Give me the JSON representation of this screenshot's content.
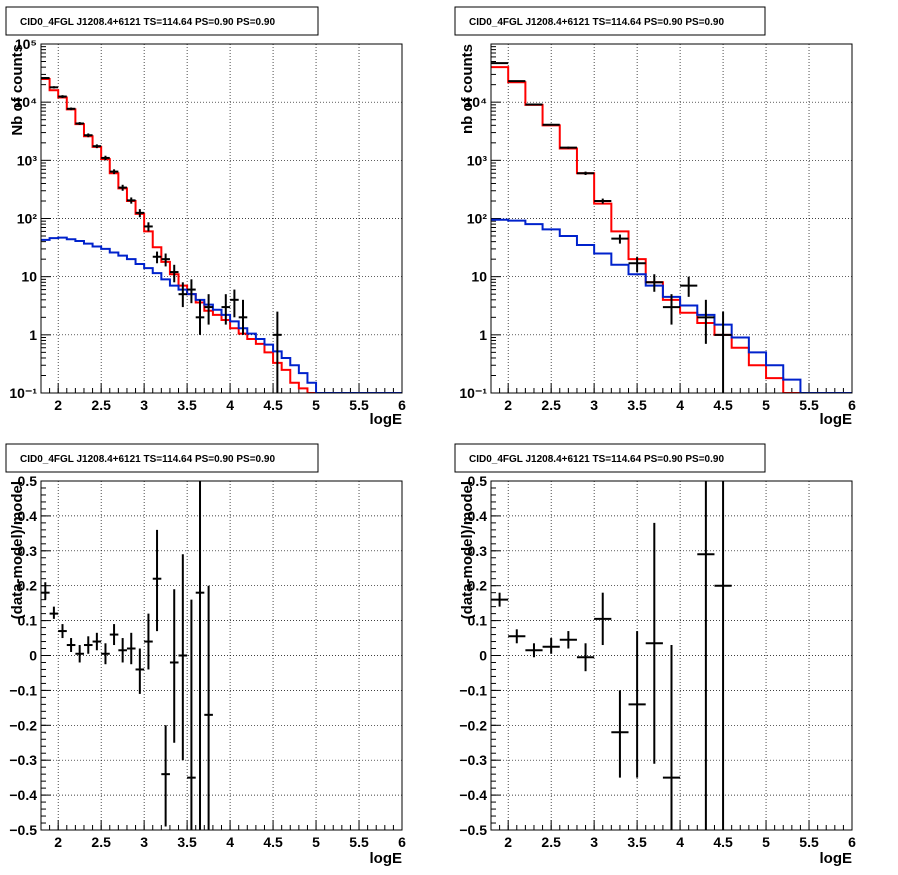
{
  "colors": {
    "total_model": "#ff0000",
    "background_model": "#0022cc",
    "data": "#000000",
    "zero_model": "#0000ff"
  },
  "chart_data": [
    {
      "type": "step-histogram",
      "title": "CID0_4FGL J1208.4+6121 TS=114.64 PS=0.90 PS=0.90",
      "xlabel": "logE",
      "ylabel": "Nb of counts",
      "log_y": true,
      "xlim": [
        1.8,
        6.0
      ],
      "ylim": [
        0.1,
        100000
      ],
      "x_ticks": [
        2,
        2.5,
        3,
        3.5,
        4,
        4.5,
        5,
        5.5,
        6
      ],
      "x_tick_labels": [
        "2",
        "2.5",
        "3",
        "3.5",
        "4",
        "4.5",
        "5",
        "5.5",
        "6"
      ],
      "y_ticks": [
        0.1,
        1,
        10,
        100,
        1000,
        10000,
        100000
      ],
      "y_tick_labels": [
        "10⁻¹",
        "1",
        "10",
        "10²",
        "10³",
        "10⁴",
        "10⁵"
      ],
      "grid": true,
      "bin_edges": [
        1.8,
        1.9,
        2.0,
        2.1,
        2.2,
        2.3,
        2.4,
        2.5,
        2.6,
        2.7,
        2.8,
        2.9,
        3.0,
        3.1,
        3.2,
        3.3,
        3.4,
        3.5,
        3.6,
        3.7,
        3.8,
        3.9,
        4.0,
        4.1,
        4.2,
        4.3,
        4.4,
        4.5,
        4.6,
        4.7,
        4.8,
        4.9,
        5.0,
        5.1,
        5.2,
        5.3,
        5.4,
        5.5,
        5.6,
        5.7,
        5.8,
        5.9,
        6.0
      ],
      "series": [
        {
          "role": "total_model",
          "values": [
            25000,
            16000,
            12000,
            7500,
            4200,
            2600,
            1700,
            1050,
            600,
            330,
            200,
            120,
            60,
            32,
            18,
            11,
            7,
            5,
            3.6,
            2.6,
            2.2,
            1.8,
            1.3,
            1.05,
            0.85,
            0.7,
            0.5,
            0.33,
            0.25,
            0.15,
            0.12,
            0.1,
            0.1,
            0.1,
            0.1,
            0.1,
            0.1,
            0.1,
            0.1,
            0.1,
            0.1,
            0.1
          ]
        },
        {
          "role": "background_model",
          "values": [
            43,
            46,
            47,
            44,
            41,
            37,
            33,
            30,
            26,
            23,
            20,
            16.5,
            14,
            11.5,
            9,
            7,
            6,
            5,
            4,
            3.3,
            2.7,
            2.2,
            1.7,
            1.3,
            1.05,
            0.85,
            0.68,
            0.52,
            0.4,
            0.3,
            0.22,
            0.15,
            0.1,
            0.1,
            0.1,
            0.1,
            0.1,
            0.1,
            0.1,
            0.1,
            0.1,
            0.1
          ]
        },
        {
          "role": "data",
          "points": [
            {
              "x": 1.85,
              "y": 26000,
              "lo": 25000,
              "hi": 27000
            },
            {
              "x": 1.95,
              "y": 18000,
              "lo": 17200,
              "hi": 18800
            },
            {
              "x": 2.05,
              "y": 12500,
              "lo": 11800,
              "hi": 13200
            },
            {
              "x": 2.15,
              "y": 7700,
              "lo": 7300,
              "hi": 8100
            },
            {
              "x": 2.25,
              "y": 4300,
              "lo": 4050,
              "hi": 4550
            },
            {
              "x": 2.35,
              "y": 2700,
              "lo": 2500,
              "hi": 2900
            },
            {
              "x": 2.45,
              "y": 1750,
              "lo": 1620,
              "hi": 1880
            },
            {
              "x": 2.55,
              "y": 1100,
              "lo": 1000,
              "hi": 1200
            },
            {
              "x": 2.65,
              "y": 640,
              "lo": 580,
              "hi": 700
            },
            {
              "x": 2.75,
              "y": 340,
              "lo": 300,
              "hi": 380
            },
            {
              "x": 2.85,
              "y": 205,
              "lo": 180,
              "hi": 230
            },
            {
              "x": 2.95,
              "y": 125,
              "lo": 105,
              "hi": 145
            },
            {
              "x": 3.05,
              "y": 73,
              "lo": 60,
              "hi": 86
            },
            {
              "x": 3.15,
              "y": 22,
              "lo": 17,
              "hi": 27
            },
            {
              "x": 3.25,
              "y": 20,
              "lo": 15,
              "hi": 25
            },
            {
              "x": 3.35,
              "y": 12,
              "lo": 8,
              "hi": 16
            },
            {
              "x": 3.45,
              "y": 5,
              "lo": 3,
              "hi": 8
            },
            {
              "x": 3.55,
              "y": 6,
              "lo": 3.5,
              "hi": 9
            },
            {
              "x": 3.65,
              "y": 2,
              "lo": 1,
              "hi": 4
            },
            {
              "x": 3.75,
              "y": 3,
              "lo": 1.5,
              "hi": 5
            },
            {
              "x": 3.95,
              "y": 3,
              "lo": 1.5,
              "hi": 5
            },
            {
              "x": 4.05,
              "y": 4,
              "lo": 2,
              "hi": 6
            },
            {
              "x": 4.15,
              "y": 2,
              "lo": 1,
              "hi": 4
            },
            {
              "x": 4.55,
              "y": 1,
              "lo": 0.1,
              "hi": 2.5
            }
          ]
        }
      ]
    },
    {
      "type": "step-histogram",
      "title": "CID0_4FGL J1208.4+6121 TS=114.64 PS=0.90 PS=0.90",
      "xlabel": "logE",
      "ylabel": "nb of counts",
      "log_y": true,
      "xlim": [
        1.8,
        6.0
      ],
      "ylim": [
        0.1,
        100000
      ],
      "x_ticks": [
        2,
        2.5,
        3,
        3.5,
        4,
        4.5,
        5,
        5.5,
        6
      ],
      "x_tick_labels": [
        "2",
        "2.5",
        "3",
        "3.5",
        "4",
        "4.5",
        "5",
        "5.5",
        "6"
      ],
      "y_ticks": [
        0.1,
        1,
        10,
        100,
        1000,
        10000
      ],
      "y_tick_labels": [
        "10⁻¹",
        "1",
        "10",
        "10²",
        "10³",
        "10⁴"
      ],
      "grid": true,
      "bin_edges": [
        1.8,
        2.0,
        2.2,
        2.4,
        2.6,
        2.8,
        3.0,
        3.2,
        3.4,
        3.6,
        3.8,
        4.0,
        4.2,
        4.4,
        4.6,
        4.8,
        5.0,
        5.2,
        5.4,
        5.6,
        5.8,
        6.0
      ],
      "series": [
        {
          "role": "total_model",
          "values": [
            40000,
            22000,
            9000,
            4000,
            1600,
            600,
            180,
            60,
            20,
            8,
            4,
            2.4,
            1.6,
            1,
            0.6,
            0.3,
            0.18,
            0.1,
            0.1,
            0.1,
            0.1
          ]
        },
        {
          "role": "background_model",
          "values": [
            95,
            92,
            80,
            65,
            50,
            35,
            25,
            16,
            11,
            7,
            4.5,
            3.2,
            2.2,
            1.5,
            0.9,
            0.5,
            0.3,
            0.17,
            0.1,
            0.1,
            0.1
          ]
        },
        {
          "role": "data",
          "points": [
            {
              "x": 1.9,
              "y": 47000,
              "lo": 46000,
              "hi": 48000
            },
            {
              "x": 2.1,
              "y": 23000,
              "lo": 22500,
              "hi": 23500
            },
            {
              "x": 2.3,
              "y": 9100,
              "lo": 8900,
              "hi": 9300
            },
            {
              "x": 2.5,
              "y": 4100,
              "lo": 3950,
              "hi": 4250
            },
            {
              "x": 2.7,
              "y": 1650,
              "lo": 1580,
              "hi": 1720
            },
            {
              "x": 2.9,
              "y": 600,
              "lo": 560,
              "hi": 640
            },
            {
              "x": 3.1,
              "y": 200,
              "lo": 180,
              "hi": 220
            },
            {
              "x": 3.3,
              "y": 45,
              "lo": 37,
              "hi": 53
            },
            {
              "x": 3.5,
              "y": 17,
              "lo": 12,
              "hi": 22
            },
            {
              "x": 3.7,
              "y": 8,
              "lo": 5.5,
              "hi": 11
            },
            {
              "x": 3.9,
              "y": 3,
              "lo": 1.5,
              "hi": 5
            },
            {
              "x": 4.1,
              "y": 7,
              "lo": 4.5,
              "hi": 10
            },
            {
              "x": 4.3,
              "y": 2,
              "lo": 0.7,
              "hi": 4
            },
            {
              "x": 4.5,
              "y": 1,
              "lo": 0.1,
              "hi": 2.5
            }
          ]
        }
      ]
    },
    {
      "type": "scatter",
      "title": "CID0_4FGL J1208.4+6121 TS=114.64 PS=0.90 PS=0.90",
      "xlabel": "logE",
      "ylabel": "(data-model)/model",
      "log_y": false,
      "xlim": [
        1.8,
        6.0
      ],
      "ylim": [
        -0.5,
        0.5
      ],
      "x_ticks": [
        2,
        2.5,
        3,
        3.5,
        4,
        4.5,
        5,
        5.5,
        6
      ],
      "x_tick_labels": [
        "2",
        "2.5",
        "3",
        "3.5",
        "4",
        "4.5",
        "5",
        "5.5",
        "6"
      ],
      "y_ticks": [
        -0.5,
        -0.4,
        -0.3,
        -0.2,
        -0.1,
        0,
        0.1,
        0.2,
        0.3,
        0.4,
        0.5
      ],
      "y_tick_labels": [
        "−0.5",
        "−0.4",
        "−0.3",
        "−0.2",
        "−0.1",
        "0",
        "0.1",
        "0.2",
        "0.3",
        "0.4",
        "0.5"
      ],
      "grid": true,
      "xerr": 0.05,
      "series": [
        {
          "role": "data",
          "points": [
            {
              "x": 1.85,
              "y": 0.18,
              "lo": 0.16,
              "hi": 0.21
            },
            {
              "x": 1.95,
              "y": 0.12,
              "lo": 0.105,
              "hi": 0.14
            },
            {
              "x": 2.05,
              "y": 0.07,
              "lo": 0.05,
              "hi": 0.09
            },
            {
              "x": 2.15,
              "y": 0.03,
              "lo": 0.01,
              "hi": 0.05
            },
            {
              "x": 2.25,
              "y": 0.005,
              "lo": -0.02,
              "hi": 0.03
            },
            {
              "x": 2.35,
              "y": 0.03,
              "lo": 0.005,
              "hi": 0.055
            },
            {
              "x": 2.45,
              "y": 0.04,
              "lo": 0.015,
              "hi": 0.065
            },
            {
              "x": 2.55,
              "y": 0.005,
              "lo": -0.025,
              "hi": 0.035
            },
            {
              "x": 2.65,
              "y": 0.06,
              "lo": 0.03,
              "hi": 0.09
            },
            {
              "x": 2.75,
              "y": 0.015,
              "lo": -0.02,
              "hi": 0.05
            },
            {
              "x": 2.85,
              "y": 0.02,
              "lo": -0.025,
              "hi": 0.065
            },
            {
              "x": 2.95,
              "y": -0.04,
              "lo": -0.11,
              "hi": 0.02
            },
            {
              "x": 3.05,
              "y": 0.04,
              "lo": -0.04,
              "hi": 0.12
            },
            {
              "x": 3.15,
              "y": 0.22,
              "lo": 0.07,
              "hi": 0.36
            },
            {
              "x": 3.25,
              "y": -0.34,
              "lo": -0.49,
              "hi": -0.2
            },
            {
              "x": 3.35,
              "y": -0.02,
              "lo": -0.25,
              "hi": 0.19
            },
            {
              "x": 3.45,
              "y": 0.0,
              "lo": -0.3,
              "hi": 0.29
            },
            {
              "x": 3.55,
              "y": -0.35,
              "lo": -0.5,
              "hi": 0.16
            },
            {
              "x": 3.65,
              "y": 0.18,
              "lo": -0.5,
              "hi": 0.5
            },
            {
              "x": 3.75,
              "y": -0.17,
              "lo": -0.5,
              "hi": 0.2
            }
          ]
        }
      ]
    },
    {
      "type": "scatter",
      "title": "CID0_4FGL J1208.4+6121 TS=114.64 PS=0.90 PS=0.90",
      "xlabel": "logE",
      "ylabel": "(data-model)/model",
      "log_y": false,
      "xlim": [
        1.8,
        6.0
      ],
      "ylim": [
        -0.5,
        0.5
      ],
      "x_ticks": [
        2,
        2.5,
        3,
        3.5,
        4,
        4.5,
        5,
        5.5,
        6
      ],
      "x_tick_labels": [
        "2",
        "2.5",
        "3",
        "3.5",
        "4",
        "4.5",
        "5",
        "5.5",
        "6"
      ],
      "y_ticks": [
        -0.5,
        -0.4,
        -0.3,
        -0.2,
        -0.1,
        0,
        0.1,
        0.2,
        0.3,
        0.4,
        0.5
      ],
      "y_tick_labels": [
        "−0.5",
        "−0.4",
        "−0.3",
        "−0.2",
        "−0.1",
        "0",
        "0.1",
        "0.2",
        "0.3",
        "0.4",
        "0.5"
      ],
      "grid": true,
      "xerr": 0.1,
      "series": [
        {
          "role": "data",
          "points": [
            {
              "x": 1.9,
              "y": 0.16,
              "lo": 0.14,
              "hi": 0.18
            },
            {
              "x": 2.1,
              "y": 0.055,
              "lo": 0.035,
              "hi": 0.075
            },
            {
              "x": 2.3,
              "y": 0.015,
              "lo": -0.005,
              "hi": 0.035
            },
            {
              "x": 2.5,
              "y": 0.025,
              "lo": 0.005,
              "hi": 0.05
            },
            {
              "x": 2.7,
              "y": 0.045,
              "lo": 0.02,
              "hi": 0.07
            },
            {
              "x": 2.9,
              "y": -0.005,
              "lo": -0.045,
              "hi": 0.035
            },
            {
              "x": 3.1,
              "y": 0.105,
              "lo": 0.03,
              "hi": 0.18
            },
            {
              "x": 3.3,
              "y": -0.22,
              "lo": -0.35,
              "hi": -0.1
            },
            {
              "x": 3.5,
              "y": -0.14,
              "lo": -0.35,
              "hi": 0.07
            },
            {
              "x": 3.7,
              "y": 0.035,
              "lo": -0.31,
              "hi": 0.38
            },
            {
              "x": 3.9,
              "y": -0.35,
              "lo": -0.5,
              "hi": 0.03
            },
            {
              "x": 4.3,
              "y": 0.29,
              "lo": -0.5,
              "hi": 0.5
            },
            {
              "x": 4.5,
              "y": 0.2,
              "lo": -0.5,
              "hi": 0.5
            }
          ]
        }
      ]
    }
  ]
}
